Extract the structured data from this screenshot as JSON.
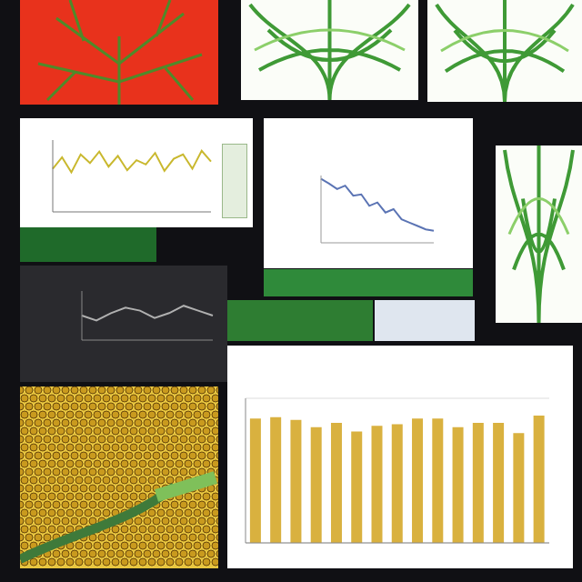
{
  "chart_data": [
    {
      "type": "line",
      "color": "#c9b82e",
      "categories": [
        null,
        null,
        null,
        null,
        null,
        null,
        null,
        null,
        null,
        null,
        null,
        null,
        null,
        null,
        null,
        null,
        null,
        null
      ],
      "values": [
        60,
        76,
        55,
        80,
        68,
        84,
        63,
        78,
        58,
        72,
        66,
        82,
        57,
        74,
        80,
        60,
        85,
        70
      ],
      "ylim": [
        0,
        100
      ],
      "grid": false,
      "tick_labels": false
    },
    {
      "type": "line",
      "color": "#5b74b4",
      "categories": [
        null,
        null,
        null,
        null,
        null,
        null,
        null,
        null,
        null,
        null,
        null,
        null,
        null,
        null,
        null
      ],
      "values": [
        95,
        88,
        80,
        85,
        70,
        72,
        55,
        60,
        45,
        50,
        35,
        30,
        25,
        20,
        18
      ],
      "ylim": [
        0,
        100
      ],
      "grid": false,
      "tick_labels": false
    },
    {
      "type": "line",
      "color": "#b0b0b0",
      "categories": [
        null,
        null,
        null,
        null,
        null,
        null,
        null,
        null,
        null,
        null
      ],
      "values": [
        50,
        40,
        55,
        66,
        60,
        45,
        55,
        70,
        60,
        50
      ],
      "ylim": [
        0,
        100
      ],
      "grid": false,
      "tick_labels": false
    },
    {
      "type": "bar",
      "color": "#d9b13f",
      "categories": [
        null,
        null,
        null,
        null,
        null,
        null,
        null,
        null,
        null,
        null,
        null,
        null,
        null,
        null,
        null
      ],
      "values": [
        86,
        87,
        85,
        80,
        83,
        77,
        81,
        82,
        86,
        86,
        80,
        83,
        83,
        76,
        88
      ],
      "ylim": [
        0,
        100
      ],
      "grid": true,
      "tick_labels": false
    }
  ]
}
